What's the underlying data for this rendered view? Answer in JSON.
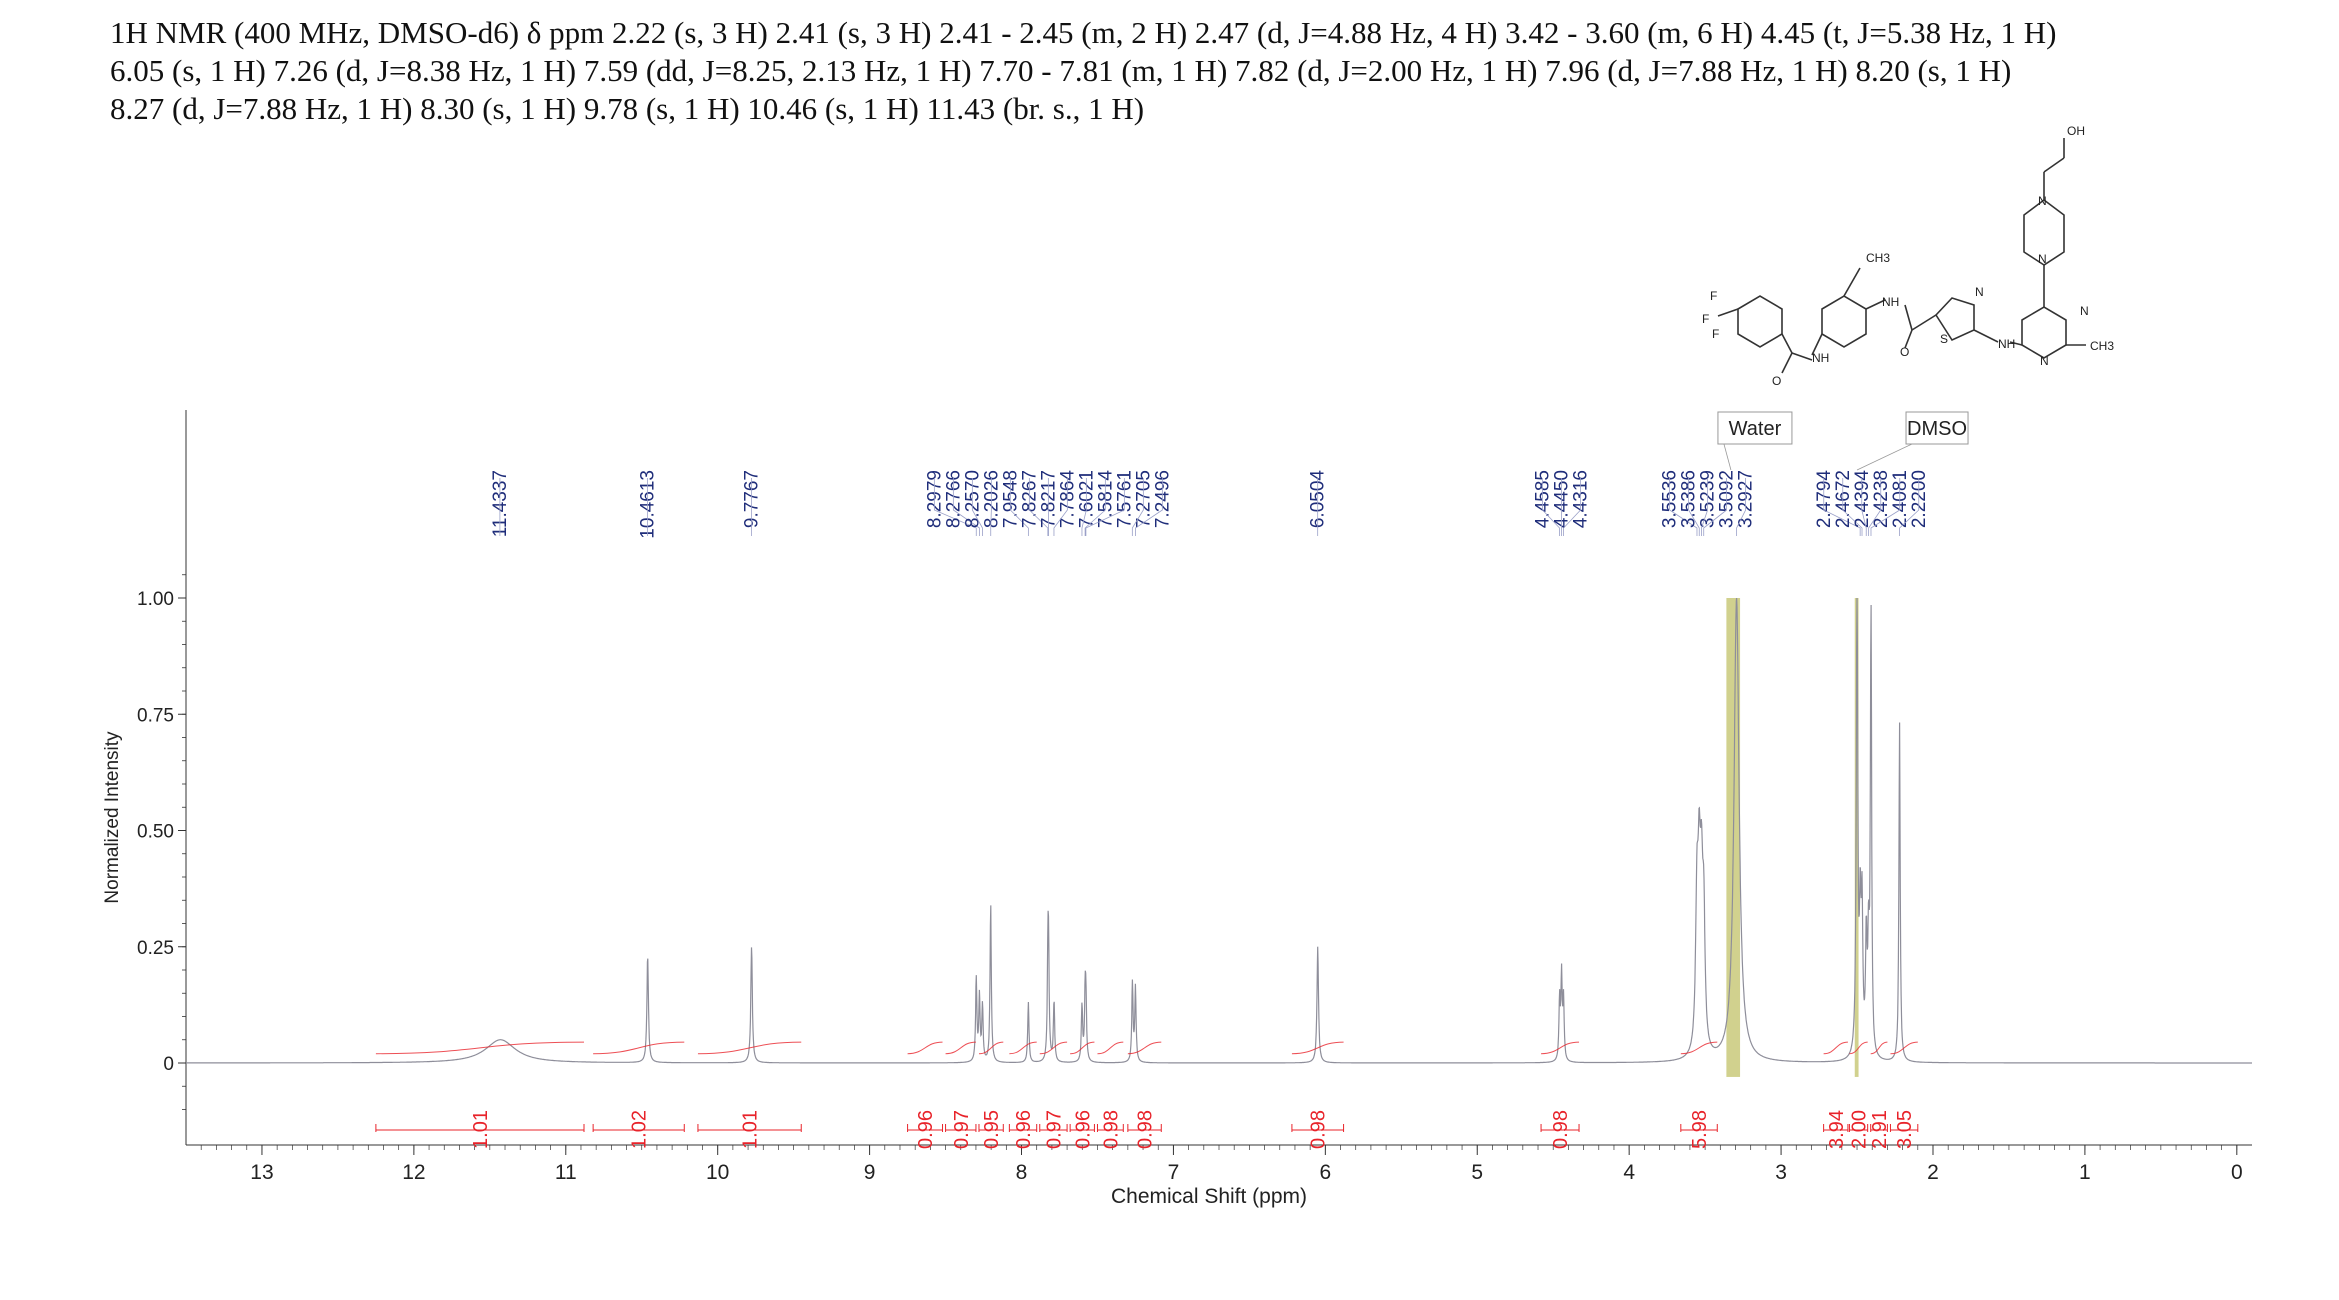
{
  "header": {
    "lines": [
      "1H NMR (400 MHz, DMSO-d6) δ ppm 2.22 (s, 3 H) 2.41 (s, 3 H) 2.41 - 2.45 (m, 2 H) 2.47 (d, J=4.88 Hz, 4 H) 3.42 - 3.60 (m, 6 H) 4.45 (t, J=5.38 Hz, 1 H)",
      "6.05 (s, 1 H) 7.26 (d, J=8.38 Hz, 1 H) 7.59 (dd, J=8.25, 2.13 Hz, 1 H) 7.70 - 7.81 (m, 1 H) 7.82 (d, J=2.00 Hz, 1 H) 7.96 (d, J=7.88 Hz, 1 H) 8.20 (s, 1 H)",
      "8.27 (d, J=7.88 Hz, 1 H) 8.30 (s, 1 H) 9.78 (s, 1 H) 10.46 (s, 1 H) 11.43 (br. s., 1 H)"
    ]
  },
  "colors": {
    "spectrum": "#8e8e9a",
    "peak_label": "#1f2d7a",
    "integral": "#e8232a",
    "solvent_band": "#c9c97a",
    "axis": "#333333"
  },
  "structure": {
    "atoms": [
      "OH",
      "N",
      "N",
      "CH3",
      "NH",
      "N",
      "F",
      "F",
      "F",
      "S",
      "N",
      "NH",
      "O",
      "NH",
      "O",
      "N",
      "CH3"
    ]
  },
  "chart_data": {
    "type": "line",
    "xlabel": "Chemical Shift (ppm)",
    "ylabel": "Normalized Intensity",
    "xlim": [
      13.5,
      -0.1
    ],
    "ylim": [
      -0.15,
      1.1
    ],
    "x_ticks": [
      "13",
      "12",
      "11",
      "10",
      "9",
      "8",
      "7",
      "6",
      "5",
      "4",
      "3",
      "2",
      "1",
      "0"
    ],
    "y_ticks": [
      "1.00",
      "0.75",
      "0.50",
      "0.25",
      "0"
    ],
    "solvent_labels": [
      {
        "text": "Water",
        "ppm": 3.33
      },
      {
        "text": "DMSO",
        "ppm": 2.5
      }
    ],
    "peak_labels": [
      {
        "text": "11.4337",
        "ppm": 11.4337
      },
      {
        "text": "10.4613",
        "ppm": 10.4613
      },
      {
        "text": "9.7767",
        "ppm": 9.7767
      },
      {
        "text": "8.2979",
        "ppm": 8.2979
      },
      {
        "text": "8.2766",
        "ppm": 8.2766
      },
      {
        "text": "8.2570",
        "ppm": 8.257
      },
      {
        "text": "8.2026",
        "ppm": 8.2026
      },
      {
        "text": "7.9548",
        "ppm": 7.9548
      },
      {
        "text": "7.8267",
        "ppm": 7.8267
      },
      {
        "text": "7.8217",
        "ppm": 7.8217
      },
      {
        "text": "7.7864",
        "ppm": 7.7864
      },
      {
        "text": "7.6021",
        "ppm": 7.6021
      },
      {
        "text": "7.5814",
        "ppm": 7.5814
      },
      {
        "text": "7.5761",
        "ppm": 7.5761
      },
      {
        "text": "7.2705",
        "ppm": 7.2705
      },
      {
        "text": "7.2496",
        "ppm": 7.2496
      },
      {
        "text": "6.0504",
        "ppm": 6.0504
      },
      {
        "text": "4.4585",
        "ppm": 4.4585
      },
      {
        "text": "4.4450",
        "ppm": 4.445
      },
      {
        "text": "4.4316",
        "ppm": 4.4316
      },
      {
        "text": "3.5536",
        "ppm": 3.5536
      },
      {
        "text": "3.5386",
        "ppm": 3.5386
      },
      {
        "text": "3.5239",
        "ppm": 3.5239
      },
      {
        "text": "3.5092",
        "ppm": 3.5092
      },
      {
        "text": "3.2927",
        "ppm": 3.2927
      },
      {
        "text": "2.4794",
        "ppm": 2.4794
      },
      {
        "text": "2.4672",
        "ppm": 2.4672
      },
      {
        "text": "2.4394",
        "ppm": 2.4394
      },
      {
        "text": "2.4238",
        "ppm": 2.4238
      },
      {
        "text": "2.4081",
        "ppm": 2.4081
      },
      {
        "text": "2.2200",
        "ppm": 2.22
      }
    ],
    "peaks": [
      {
        "ppm": 11.43,
        "height": 0.05,
        "width": 0.12
      },
      {
        "ppm": 10.461,
        "height": 0.23,
        "width": 0.006
      },
      {
        "ppm": 9.777,
        "height": 0.25,
        "width": 0.006
      },
      {
        "ppm": 8.298,
        "height": 0.18,
        "width": 0.005
      },
      {
        "ppm": 8.277,
        "height": 0.14,
        "width": 0.005
      },
      {
        "ppm": 8.257,
        "height": 0.12,
        "width": 0.005
      },
      {
        "ppm": 8.203,
        "height": 0.34,
        "width": 0.005
      },
      {
        "ppm": 7.955,
        "height": 0.13,
        "width": 0.005
      },
      {
        "ppm": 7.826,
        "height": 0.2,
        "width": 0.005
      },
      {
        "ppm": 7.822,
        "height": 0.18,
        "width": 0.005
      },
      {
        "ppm": 7.786,
        "height": 0.13,
        "width": 0.005
      },
      {
        "ppm": 7.602,
        "height": 0.12,
        "width": 0.005
      },
      {
        "ppm": 7.581,
        "height": 0.13,
        "width": 0.005
      },
      {
        "ppm": 7.576,
        "height": 0.11,
        "width": 0.005
      },
      {
        "ppm": 7.27,
        "height": 0.17,
        "width": 0.005
      },
      {
        "ppm": 7.25,
        "height": 0.16,
        "width": 0.005
      },
      {
        "ppm": 6.05,
        "height": 0.25,
        "width": 0.006
      },
      {
        "ppm": 4.458,
        "height": 0.13,
        "width": 0.005
      },
      {
        "ppm": 4.445,
        "height": 0.18,
        "width": 0.005
      },
      {
        "ppm": 4.432,
        "height": 0.13,
        "width": 0.005
      },
      {
        "ppm": 3.554,
        "height": 0.31,
        "width": 0.01
      },
      {
        "ppm": 3.539,
        "height": 0.33,
        "width": 0.01
      },
      {
        "ppm": 3.524,
        "height": 0.3,
        "width": 0.01
      },
      {
        "ppm": 3.509,
        "height": 0.27,
        "width": 0.01
      },
      {
        "ppm": 3.293,
        "height": 1.0,
        "width": 0.02
      },
      {
        "ppm": 2.479,
        "height": 0.28,
        "width": 0.006
      },
      {
        "ppm": 2.467,
        "height": 0.3,
        "width": 0.006
      },
      {
        "ppm": 2.5,
        "height": 1.0,
        "width": 0.006
      },
      {
        "ppm": 2.439,
        "height": 0.24,
        "width": 0.006
      },
      {
        "ppm": 2.424,
        "height": 0.22,
        "width": 0.006
      },
      {
        "ppm": 2.408,
        "height": 0.95,
        "width": 0.005
      },
      {
        "ppm": 2.22,
        "height": 0.73,
        "width": 0.005
      }
    ],
    "solvent_bands": [
      {
        "from": 3.36,
        "to": 3.27
      },
      {
        "from": 2.515,
        "to": 2.49
      }
    ],
    "integrals": [
      {
        "text": "1.01",
        "from": 12.25,
        "to": 10.88
      },
      {
        "text": "1.02",
        "from": 10.82,
        "to": 10.22
      },
      {
        "text": "1.01",
        "from": 10.13,
        "to": 9.45
      },
      {
        "text": "0.96",
        "from": 8.75,
        "to": 8.52
      },
      {
        "text": "0.97",
        "from": 8.5,
        "to": 8.3
      },
      {
        "text": "0.95",
        "from": 8.28,
        "to": 8.12
      },
      {
        "text": "0.96",
        "from": 8.08,
        "to": 7.9
      },
      {
        "text": "0.97",
        "from": 7.88,
        "to": 7.7
      },
      {
        "text": "0.96",
        "from": 7.68,
        "to": 7.52
      },
      {
        "text": "0.98",
        "from": 7.5,
        "to": 7.33
      },
      {
        "text": "0.98",
        "from": 7.3,
        "to": 7.08
      },
      {
        "text": "0.98",
        "from": 6.22,
        "to": 5.88
      },
      {
        "text": "0.98",
        "from": 4.58,
        "to": 4.33
      },
      {
        "text": "5.98",
        "from": 3.66,
        "to": 3.42
      },
      {
        "text": "3.94",
        "from": 2.72,
        "to": 2.56
      },
      {
        "text": "2.00",
        "from": 2.55,
        "to": 2.43
      },
      {
        "text": "2.91",
        "from": 2.41,
        "to": 2.3
      },
      {
        "text": "3.05",
        "from": 2.28,
        "to": 2.1
      }
    ]
  }
}
